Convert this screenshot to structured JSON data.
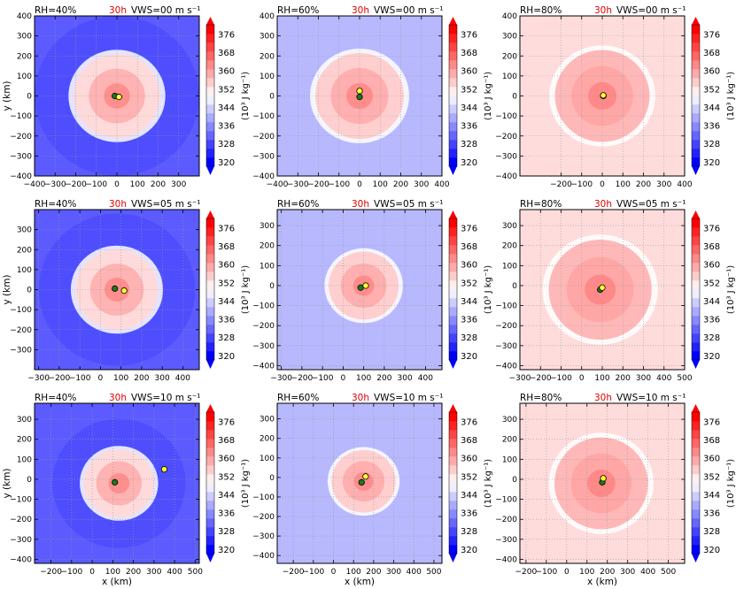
{
  "figure": {
    "time_label": "30h",
    "time_color": "#dd0000",
    "x_axis_label": "x (km)",
    "y_axis_label": "y (km)",
    "colorbar_label": "(10³ J kg⁻¹)",
    "colorbar_ticks": [
      "376",
      "368",
      "360",
      "352",
      "344",
      "336",
      "328",
      "320"
    ],
    "colorbar_levels": [
      320,
      324,
      328,
      332,
      336,
      340,
      344,
      348,
      352,
      356,
      360,
      364,
      368,
      372,
      376,
      380
    ],
    "colorbar_colors": [
      "#0000ff",
      "#2222ff",
      "#4444ff",
      "#6666ff",
      "#8888ff",
      "#aaaaff",
      "#ccccff",
      "#eeeeff",
      "#ffeeee",
      "#ffcccc",
      "#ffaaaa",
      "#ff8888",
      "#ff6666",
      "#ff4444",
      "#ff2222",
      "#ff0000"
    ],
    "storm_center_color": "#1a7a1a",
    "vortex_center_color": "#ffff33"
  },
  "chart_data": [
    {
      "type": "heatmap",
      "rh_label": "RH=40%",
      "vws_label": "VWS=00 m s⁻¹",
      "xlim": [
        -400,
        400
      ],
      "ylim": [
        -400,
        400
      ],
      "xticks": [
        -400,
        -300,
        -200,
        -100,
        0,
        100,
        200,
        300
      ],
      "yticks": [
        -400,
        -300,
        -200,
        -100,
        0,
        100,
        200,
        300,
        400
      ],
      "background_color": "#5b5bff",
      "ring_color": "#4a4aff",
      "core_center": [
        0,
        0
      ],
      "core_radius": 210,
      "core_color": "#ffdada",
      "markers": [
        {
          "color": "green",
          "x": -10,
          "y": 0
        },
        {
          "color": "yellow",
          "x": 10,
          "y": -5
        }
      ]
    },
    {
      "type": "heatmap",
      "rh_label": "RH=60%",
      "vws_label": "VWS=00 m s⁻¹",
      "xlim": [
        -400,
        400
      ],
      "ylim": [
        -400,
        400
      ],
      "xticks": [
        -400,
        -300,
        -200,
        -100,
        0,
        100,
        200,
        300,
        400
      ],
      "yticks": [
        -400,
        -300,
        -200,
        -100,
        0,
        100,
        200,
        300,
        400
      ],
      "background_color": "#b8b8ff",
      "core_center": [
        0,
        0
      ],
      "core_radius": 215,
      "core_color": "#ffcfcf",
      "markers": [
        {
          "color": "yellow",
          "x": 0,
          "y": 25
        },
        {
          "color": "green",
          "x": 0,
          "y": -5
        }
      ]
    },
    {
      "type": "heatmap",
      "rh_label": "RH=80%",
      "vws_label": "VWS=00 m s⁻¹",
      "xlim": [
        -400,
        400
      ],
      "ylim": [
        -400,
        400
      ],
      "xticks": [
        -200,
        -100,
        0,
        100,
        200,
        300,
        400
      ],
      "yticks": [
        -400,
        -300,
        -200,
        -100,
        0,
        100,
        200,
        300,
        400
      ],
      "background_color": "#ffdcdc",
      "core_center": [
        0,
        0
      ],
      "core_radius": 230,
      "core_color": "#ffb8b8",
      "markers": [
        {
          "color": "green",
          "x": 5,
          "y": 0
        },
        {
          "color": "yellow",
          "x": 5,
          "y": 3
        }
      ]
    },
    {
      "type": "heatmap",
      "rh_label": "RH=40%",
      "vws_label": "VWS=05 m s⁻¹",
      "xlim": [
        -320,
        480
      ],
      "ylim": [
        -400,
        400
      ],
      "xticks": [
        -300,
        -200,
        -100,
        0,
        100,
        200,
        300,
        400
      ],
      "yticks": [
        -300,
        -200,
        -100,
        0,
        100,
        200,
        300
      ],
      "background_color": "#5b5bff",
      "ring_color": "#4a4aff",
      "core_center": [
        80,
        0
      ],
      "core_radius": 200,
      "core_color": "#ffdada",
      "markers": [
        {
          "color": "green",
          "x": 70,
          "y": 5
        },
        {
          "color": "yellow",
          "x": 115,
          "y": -5
        }
      ]
    },
    {
      "type": "heatmap",
      "rh_label": "RH=60%",
      "vws_label": "VWS=05 m s⁻¹",
      "xlim": [
        -320,
        480
      ],
      "ylim": [
        -420,
        380
      ],
      "xticks": [
        -300,
        -200,
        -100,
        0,
        100,
        200,
        300,
        400
      ],
      "yticks": [
        -400,
        -300,
        -200,
        -100,
        0,
        100,
        200,
        300
      ],
      "background_color": "#b8b8ff",
      "core_center": [
        100,
        0
      ],
      "core_radius": 170,
      "core_color": "#ffcfcf",
      "markers": [
        {
          "color": "green",
          "x": 85,
          "y": -10
        },
        {
          "color": "yellow",
          "x": 110,
          "y": 0
        }
      ]
    },
    {
      "type": "heatmap",
      "rh_label": "RH=80%",
      "vws_label": "VWS=05 m s⁻¹",
      "xlim": [
        -300,
        500
      ],
      "ylim": [
        -420,
        380
      ],
      "xticks": [
        -300,
        -200,
        -100,
        0,
        100,
        200,
        300,
        400,
        500
      ],
      "yticks": [
        -400,
        -300,
        -200,
        -100,
        0,
        100,
        200,
        300
      ],
      "background_color": "#ffdcdc",
      "core_center": [
        90,
        -20
      ],
      "core_radius": 250,
      "core_color": "#ffb8b8",
      "markers": [
        {
          "color": "green",
          "x": 90,
          "y": -20
        },
        {
          "color": "yellow",
          "x": 100,
          "y": -10
        }
      ]
    },
    {
      "type": "heatmap",
      "rh_label": "RH=40%",
      "vws_label": "VWS=10 m s⁻¹",
      "xlim": [
        -280,
        520
      ],
      "ylim": [
        -420,
        380
      ],
      "xticks": [
        -200,
        -100,
        0,
        100,
        200,
        300,
        400,
        500
      ],
      "yticks": [
        -400,
        -300,
        -200,
        -100,
        0,
        100,
        200,
        300
      ],
      "background_color": "#5b5bff",
      "ring_color": "#4a4aff",
      "core_center": [
        130,
        -20
      ],
      "core_radius": 170,
      "core_color": "#ffdada",
      "markers": [
        {
          "color": "green",
          "x": 110,
          "y": -15
        },
        {
          "color": "yellow",
          "x": 350,
          "y": 50
        }
      ]
    },
    {
      "type": "heatmap",
      "rh_label": "RH=60%",
      "vws_label": "VWS=10 m s⁻¹",
      "xlim": [
        -280,
        540
      ],
      "ylim": [
        -440,
        380
      ],
      "xticks": [
        -200,
        -100,
        0,
        100,
        200,
        300,
        400,
        500
      ],
      "yticks": [
        -400,
        -300,
        -200,
        -100,
        0,
        100,
        200,
        300
      ],
      "background_color": "#b8b8ff",
      "core_center": [
        150,
        -20
      ],
      "core_radius": 160,
      "core_color": "#ffcfcf",
      "markers": [
        {
          "color": "green",
          "x": 140,
          "y": -25
        },
        {
          "color": "yellow",
          "x": 160,
          "y": 5
        }
      ]
    },
    {
      "type": "heatmap",
      "rh_label": "RH=80%",
      "vws_label": "VWS=10 m s⁻¹",
      "xlim": [
        -230,
        580
      ],
      "ylim": [
        -420,
        380
      ],
      "xticks": [
        -200,
        -100,
        0,
        100,
        200,
        300,
        400,
        500
      ],
      "yticks": [
        -400,
        -300,
        -200,
        -100,
        0,
        100,
        200,
        300
      ],
      "background_color": "#ffdcdc",
      "core_center": [
        170,
        -20
      ],
      "core_radius": 230,
      "core_color": "#ffb8b8",
      "markers": [
        {
          "color": "green",
          "x": 175,
          "y": -15
        },
        {
          "color": "yellow",
          "x": 180,
          "y": 5
        }
      ]
    }
  ]
}
